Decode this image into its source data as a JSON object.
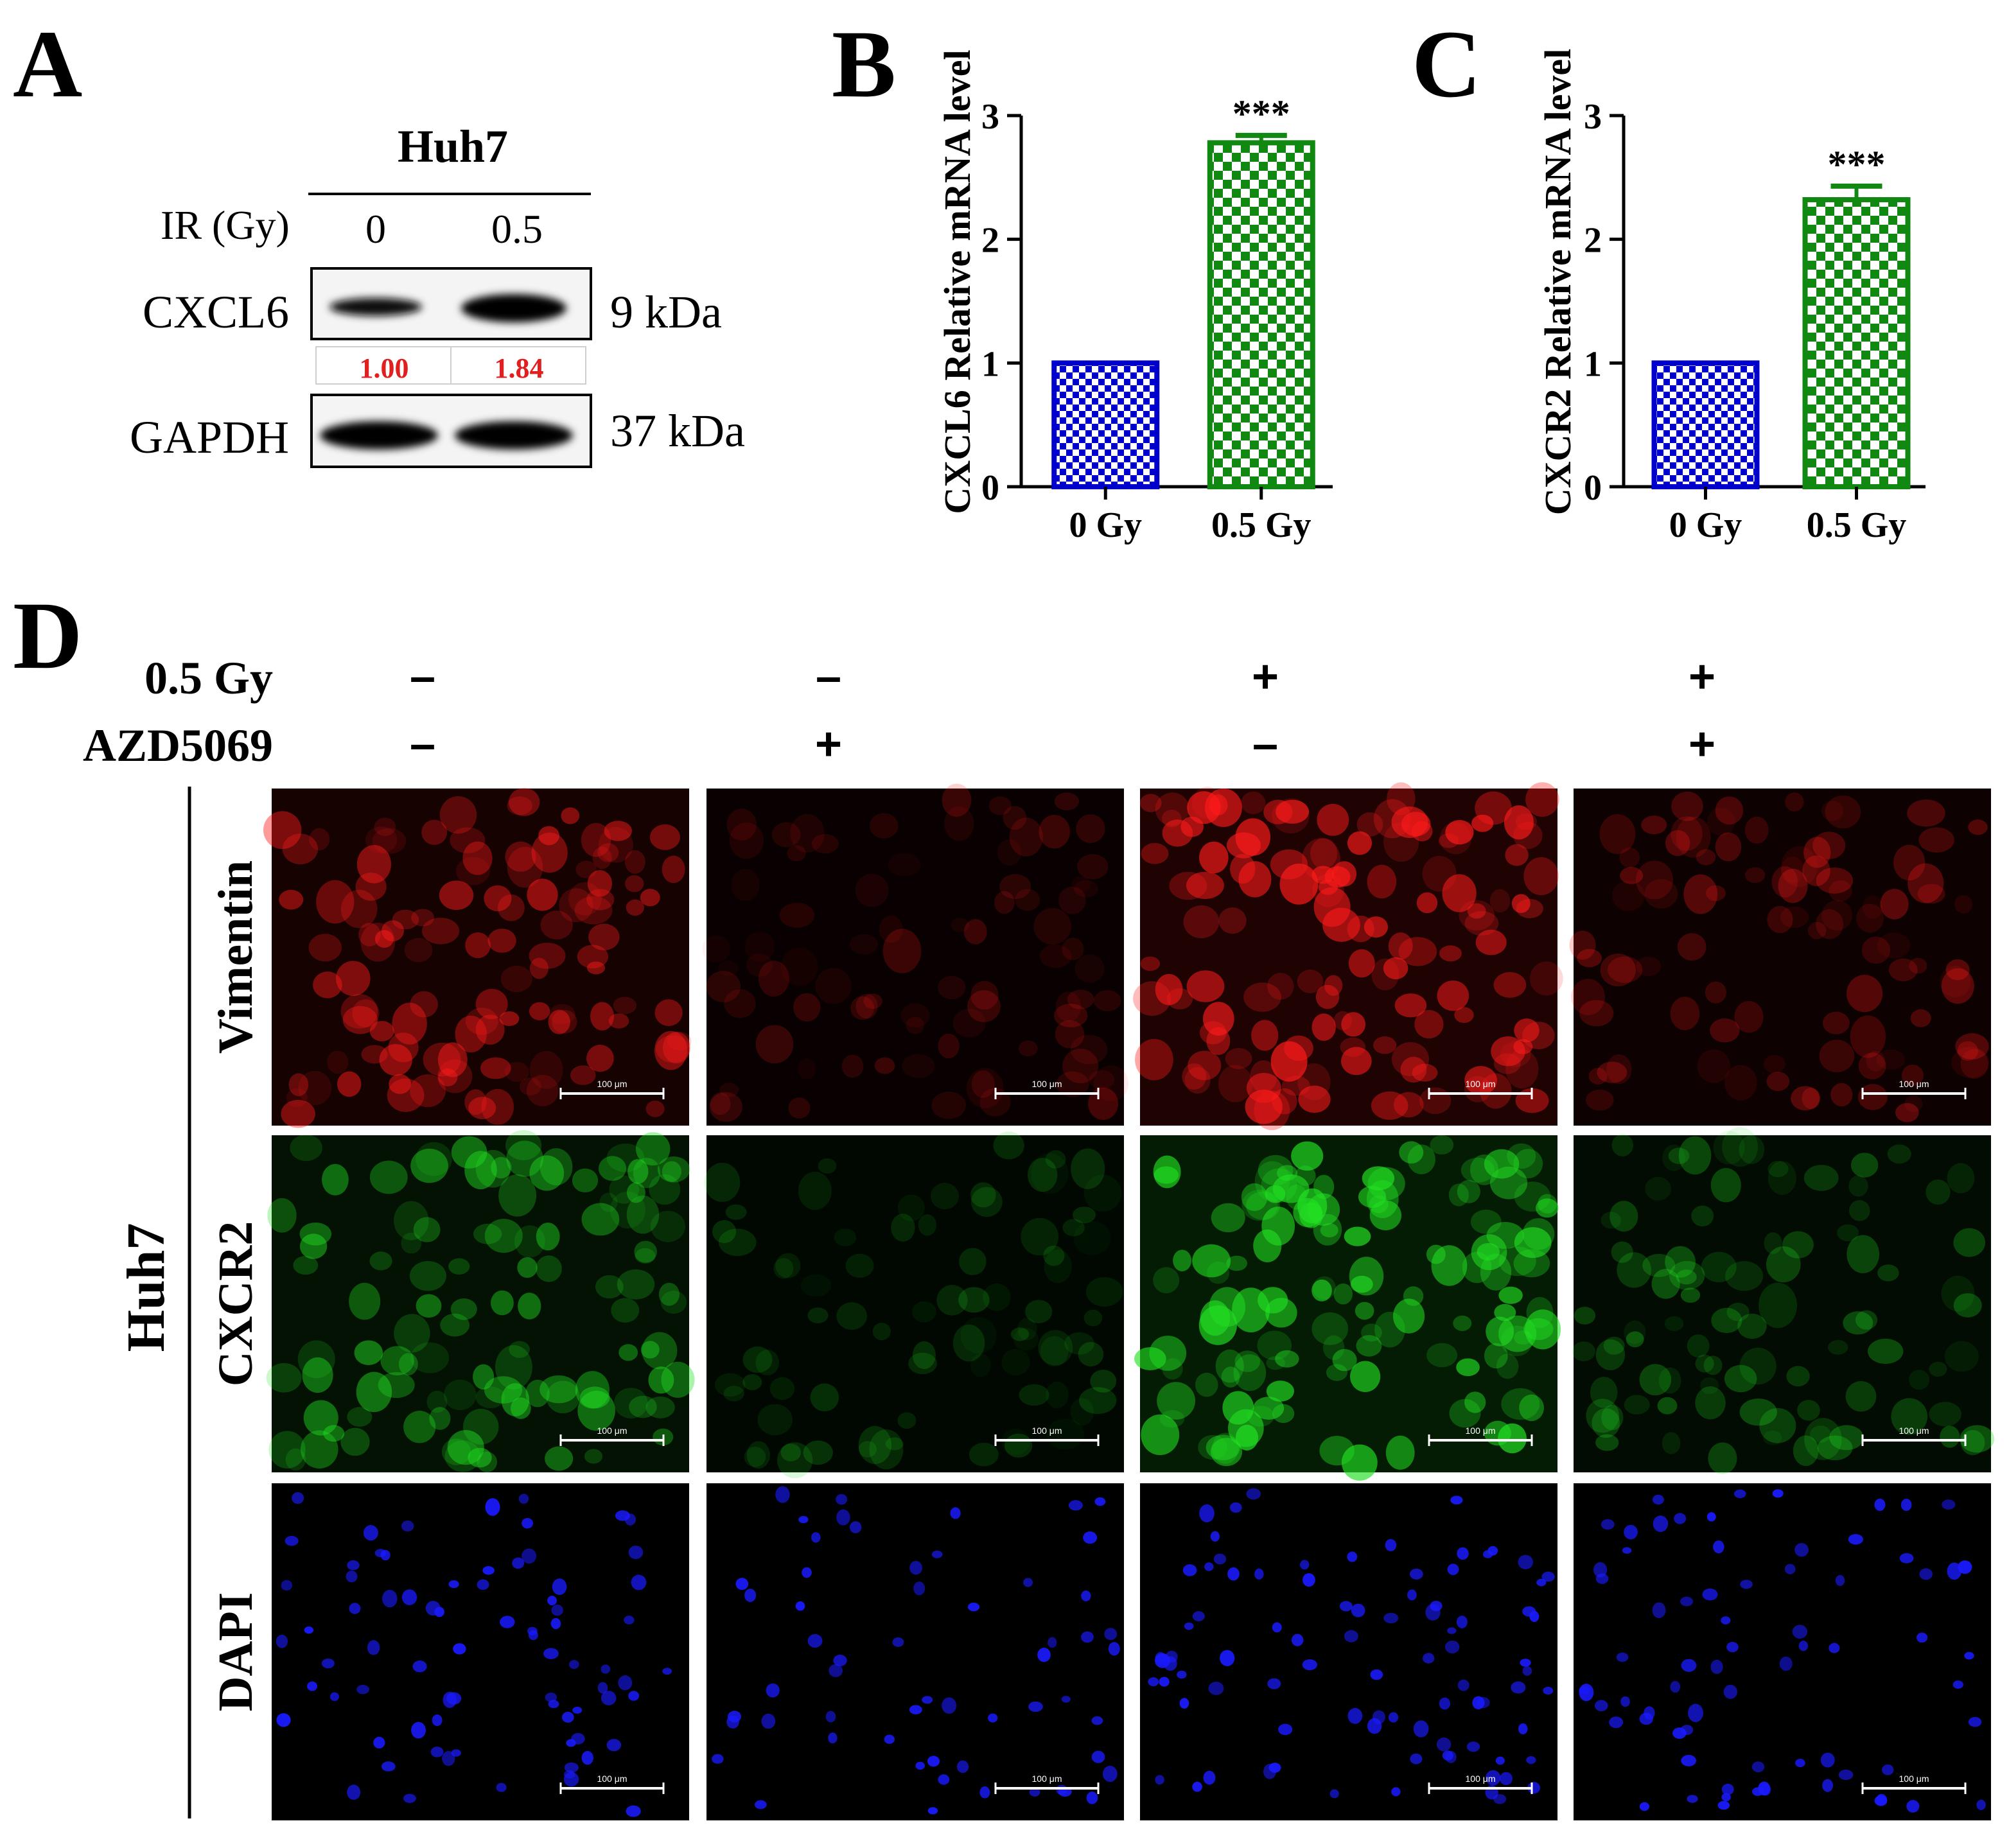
{
  "panels": {
    "a": {
      "letter": "A",
      "cell_line": "Huh7",
      "ir_label": "IR (Gy)",
      "doses": [
        "0",
        "0.5"
      ],
      "proteins": [
        {
          "name": "CXCL6",
          "size": "9 kDa"
        },
        {
          "name": "GAPDH",
          "size": "37  kDa"
        }
      ],
      "quant": [
        "1.00",
        "1.84"
      ],
      "quant_color": "#e02020"
    },
    "b": {
      "letter": "B"
    },
    "c": {
      "letter": "C"
    },
    "d": {
      "letter": "D",
      "treatments": [
        {
          "label": "0.5 Gy",
          "signs": [
            "–",
            "–",
            "+",
            "+"
          ]
        },
        {
          "label": "AZD5069",
          "signs": [
            "–",
            "+",
            "–",
            "+"
          ]
        }
      ],
      "cell_line": "Huh7",
      "rows": [
        {
          "label": "Vimentin",
          "color": "#ff1a1a",
          "intensity": [
            0.75,
            0.3,
            1.0,
            0.45
          ]
        },
        {
          "label": "CXCR2",
          "color": "#22e022",
          "intensity": [
            0.7,
            0.28,
            1.0,
            0.45
          ]
        },
        {
          "label": "DAPI",
          "color": "#1a1aff",
          "intensity": [
            0.8,
            0.6,
            0.9,
            0.75
          ]
        }
      ],
      "scale_bar": "100 μm"
    }
  },
  "chart_data": [
    {
      "type": "bar",
      "panel": "B",
      "categories": [
        "0 Gy",
        "0.5 Gy"
      ],
      "values": [
        1.0,
        2.78
      ],
      "errors": [
        0.0,
        0.06
      ],
      "significance": [
        "",
        "***"
      ],
      "ylabel": "CXCL6 Relative mRNA level",
      "xlabel": "",
      "ylim": [
        0,
        3
      ],
      "yticks": [
        0,
        1,
        2,
        3
      ],
      "bar_colors": [
        "#0000cc",
        "#118811"
      ]
    },
    {
      "type": "bar",
      "panel": "C",
      "categories": [
        "0 Gy",
        "0.5 Gy"
      ],
      "values": [
        1.0,
        2.32
      ],
      "errors": [
        0.0,
        0.11
      ],
      "significance": [
        "",
        "***"
      ],
      "ylabel": "CXCR2 Relative mRNA level",
      "xlabel": "",
      "ylim": [
        0,
        3
      ],
      "yticks": [
        0,
        1,
        2,
        3
      ],
      "bar_colors": [
        "#0000cc",
        "#118811"
      ]
    }
  ]
}
